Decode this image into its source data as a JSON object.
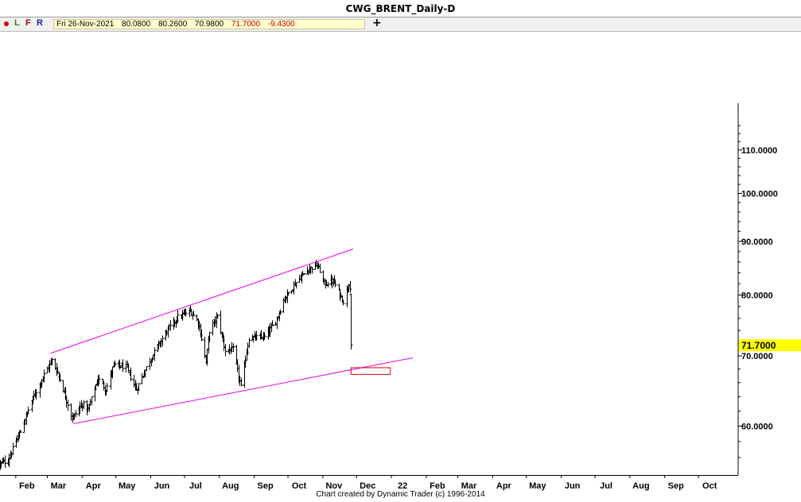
{
  "window": {
    "title": "CWG_BRENT_Daily-D"
  },
  "toolbar": {
    "buttons": [
      {
        "label": "L",
        "color": "#2e7d1a"
      },
      {
        "label": "F",
        "color": "#b00000"
      },
      {
        "label": "R",
        "color": "#1a1ab0"
      }
    ],
    "dot_color": "#d00000",
    "quote": {
      "date": "Fri 26-Nov-2021",
      "open": "80.0800",
      "high": "80.2600",
      "low": "70.9800",
      "close": "71.7000",
      "change": "-9.4300"
    },
    "add_icon": "plus-icon"
  },
  "chart_data": {
    "type": "ohlc",
    "symbol": "CWG_BRENT",
    "timeframe": "Daily",
    "y_scale": "log",
    "ylim": [
      53.5,
      120
    ],
    "y_ticks": [
      {
        "value": 60,
        "label": "60.0000"
      },
      {
        "value": 70,
        "label": "70.0000"
      },
      {
        "value": 80,
        "label": "80.0000"
      },
      {
        "value": 90,
        "label": "90.0000"
      },
      {
        "value": 100,
        "label": "100.0000"
      },
      {
        "value": 110,
        "label": "110.0000"
      }
    ],
    "x_ticks": [
      "Feb",
      "Mar",
      "Apr",
      "May",
      "Jun",
      "Jul",
      "Aug",
      "Sep",
      "Oct",
      "Nov",
      "Dec",
      "22",
      "Feb",
      "Mar",
      "Apr",
      "May",
      "Jun",
      "Jul",
      "Aug",
      "Sep",
      "Oct"
    ],
    "price_series": {
      "anchors": [
        [
          "2021-01-18",
          55.2
        ],
        [
          "2021-01-25",
          55.7
        ],
        [
          "2021-02-05",
          59.3
        ],
        [
          "2021-02-15",
          63.4
        ],
        [
          "2021-02-24",
          66.5
        ],
        [
          "2021-03-05",
          69.3
        ],
        [
          "2021-03-10",
          67.5
        ],
        [
          "2021-03-23",
          61.0
        ],
        [
          "2021-04-01",
          63.0
        ],
        [
          "2021-04-06",
          62.2
        ],
        [
          "2021-04-15",
          66.6
        ],
        [
          "2021-04-22",
          65.0
        ],
        [
          "2021-04-29",
          68.6
        ],
        [
          "2021-05-10",
          68.3
        ],
        [
          "2021-05-19",
          65.0
        ],
        [
          "2021-05-31",
          69.3
        ],
        [
          "2021-06-15",
          73.9
        ],
        [
          "2021-06-25",
          76.2
        ],
        [
          "2021-07-06",
          77.2
        ],
        [
          "2021-07-13",
          75.5
        ],
        [
          "2021-07-20",
          69.0
        ],
        [
          "2021-07-23",
          74.0
        ],
        [
          "2021-07-30",
          76.3
        ],
        [
          "2021-08-06",
          70.8
        ],
        [
          "2021-08-13",
          71.0
        ],
        [
          "2021-08-20",
          65.3
        ],
        [
          "2021-08-27",
          72.8
        ],
        [
          "2021-09-10",
          72.9
        ],
        [
          "2021-09-20",
          75.5
        ],
        [
          "2021-09-28",
          79.5
        ],
        [
          "2021-10-07",
          82.0
        ],
        [
          "2021-10-18",
          84.5
        ],
        [
          "2021-10-26",
          85.5
        ],
        [
          "2021-10-29",
          84.4
        ],
        [
          "2021-11-02",
          82.0
        ],
        [
          "2021-11-10",
          82.5
        ],
        [
          "2021-11-19",
          78.9
        ],
        [
          "2021-11-24",
          82.2
        ],
        [
          "2021-11-25",
          81.5
        ],
        [
          "2021-11-26",
          71.7
        ]
      ],
      "last": {
        "date": "2021-11-26",
        "open": 80.08,
        "high": 80.26,
        "low": 70.98,
        "close": 71.7
      }
    },
    "last_price_label": "71.7000",
    "last_price_color": "#ffff00",
    "trendlines": [
      {
        "name": "upper-channel-line",
        "from": [
          "2021-03-04",
          70.4
        ],
        "to": [
          "2021-11-28",
          88.5
        ],
        "color": "#ee00ee"
      },
      {
        "name": "lower-channel-line",
        "from": [
          "2021-03-24",
          60.3
        ],
        "to": [
          "2022-01-20",
          69.7
        ],
        "color": "#ee00ee"
      }
    ],
    "target_box": {
      "from": [
        "2021-11-26",
        68.2
      ],
      "to": [
        "2021-12-31",
        67.2
      ],
      "color": "#e00000"
    }
  },
  "footer": {
    "credit": "Chart created by Dynamic Trader  (c) 1996-2014"
  }
}
